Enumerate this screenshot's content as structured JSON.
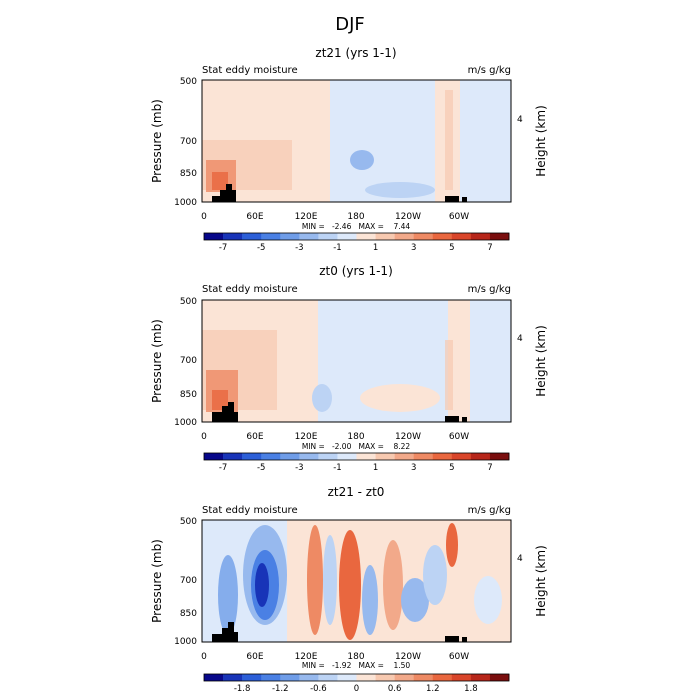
{
  "page_title": "DJF",
  "chart_data": [
    {
      "type": "heatmap",
      "title": "zt21 (yrs 1-1)",
      "left_label": "Stat eddy moisture",
      "right_label": "m/s g/kg",
      "ylabel": "Pressure (mb)",
      "ylabel_right": "Height (km)",
      "yticks": [
        "500",
        "700",
        "850",
        "1000"
      ],
      "ytick_values": [
        500,
        700,
        850,
        1000
      ],
      "yticks_right": [
        "4"
      ],
      "xticks": [
        "0",
        "60E",
        "120E",
        "180",
        "120W",
        "60W"
      ],
      "xtick_values": [
        0,
        60,
        120,
        180,
        240,
        300
      ],
      "xlim": [
        0,
        360
      ],
      "stats": "MIN =   -2.46   MAX =    7.44",
      "min": -2.46,
      "max": 7.44,
      "colorbar": {
        "labels": [
          "-7",
          "-5",
          "-3",
          "-1",
          "1",
          "3",
          "5",
          "7"
        ],
        "levels": [
          -8,
          -7,
          -6,
          -5,
          -4,
          -3,
          -2,
          -1,
          0,
          1,
          2,
          3,
          4,
          5,
          6,
          7,
          8
        ]
      }
    },
    {
      "type": "heatmap",
      "title": "zt0 (yrs 1-1)",
      "left_label": "Stat eddy moisture",
      "right_label": "m/s g/kg",
      "ylabel": "Pressure (mb)",
      "ylabel_right": "Height (km)",
      "yticks": [
        "500",
        "700",
        "850",
        "1000"
      ],
      "ytick_values": [
        500,
        700,
        850,
        1000
      ],
      "yticks_right": [
        "4"
      ],
      "xticks": [
        "0",
        "60E",
        "120E",
        "180",
        "120W",
        "60W"
      ],
      "xtick_values": [
        0,
        60,
        120,
        180,
        240,
        300
      ],
      "xlim": [
        0,
        360
      ],
      "stats": "MIN =   -2.00   MAX =    8.22",
      "min": -2.0,
      "max": 8.22,
      "colorbar": {
        "labels": [
          "-7",
          "-5",
          "-3",
          "-1",
          "1",
          "3",
          "5",
          "7"
        ],
        "levels": [
          -8,
          -7,
          -6,
          -5,
          -4,
          -3,
          -2,
          -1,
          0,
          1,
          2,
          3,
          4,
          5,
          6,
          7,
          8
        ]
      }
    },
    {
      "type": "heatmap",
      "title": "zt21 - zt0",
      "left_label": "Stat eddy moisture",
      "right_label": "m/s g/kg",
      "ylabel": "Pressure (mb)",
      "ylabel_right": "Height (km)",
      "yticks": [
        "500",
        "700",
        "850",
        "1000"
      ],
      "ytick_values": [
        500,
        700,
        850,
        1000
      ],
      "yticks_right": [
        "4"
      ],
      "xticks": [
        "0",
        "60E",
        "120E",
        "180",
        "120W",
        "60W"
      ],
      "xtick_values": [
        0,
        60,
        120,
        180,
        240,
        300
      ],
      "xlim": [
        0,
        360
      ],
      "stats": "MIN =   -1.92   MAX =    1.50",
      "min": -1.92,
      "max": 1.5,
      "colorbar": {
        "labels": [
          "-1.8",
          "-1.2",
          "-0.6",
          "0",
          "0.6",
          "1.2",
          "1.8"
        ],
        "levels": [
          -2.4,
          -2.1,
          -1.8,
          -1.5,
          -1.2,
          -0.9,
          -0.6,
          -0.3,
          0,
          0.3,
          0.6,
          0.9,
          1.2,
          1.5,
          1.8,
          2.1,
          2.4
        ]
      }
    }
  ],
  "palette": [
    "#08088a",
    "#1834b8",
    "#2c5fd8",
    "#4a80e4",
    "#6f9de8",
    "#97b9ee",
    "#bcd3f4",
    "#dde9fa",
    "#fbe4d6",
    "#f7c9b0",
    "#f2a98a",
    "#ee8a64",
    "#e9673f",
    "#d9452a",
    "#b7261a",
    "#7a0e0e"
  ]
}
